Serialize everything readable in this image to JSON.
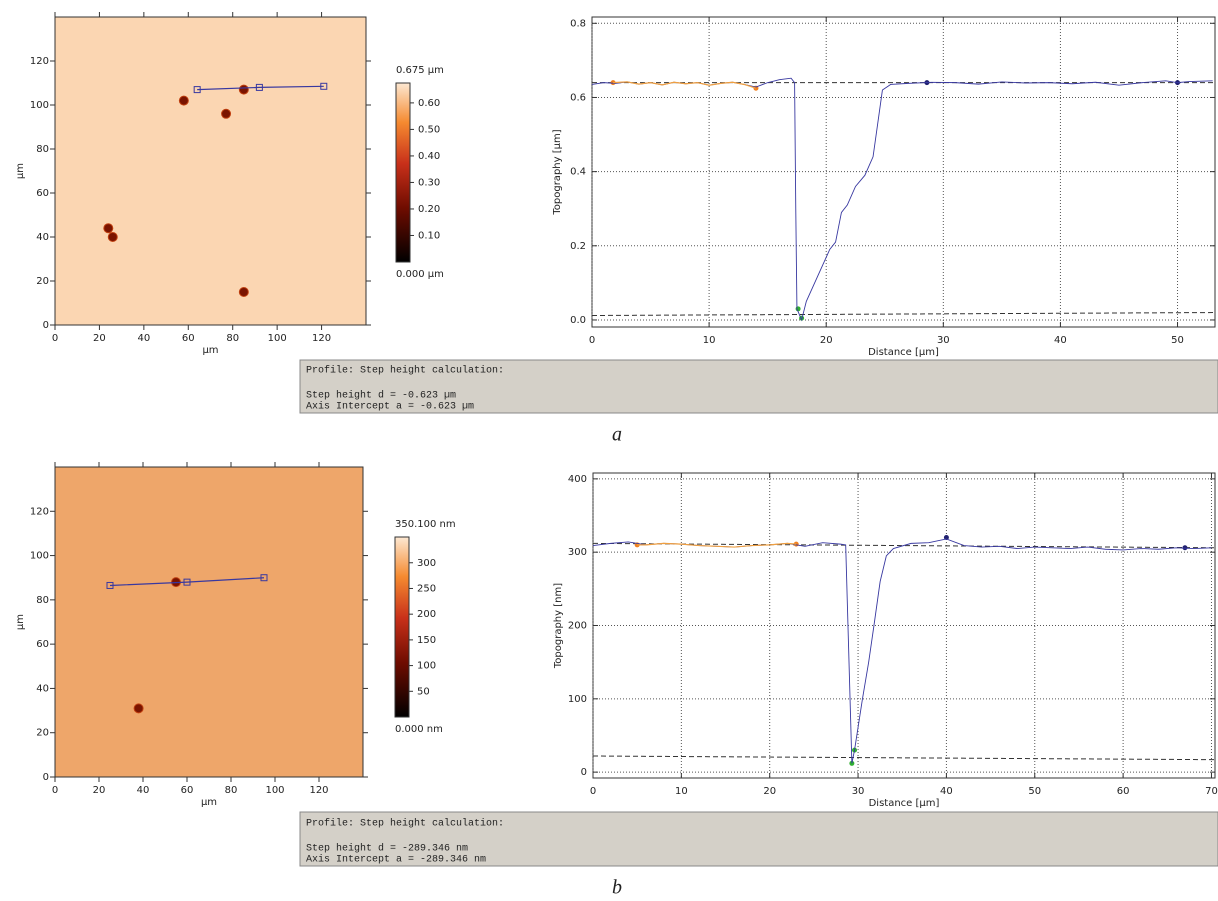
{
  "chart_data": [
    {
      "type": "heatmap",
      "color": "#fbd6b2",
      "xlabel": "µm",
      "ylabel": "µm",
      "xlim": [
        0,
        140
      ],
      "xticks": [
        0,
        20,
        40,
        60,
        80,
        100,
        120
      ],
      "ylim": [
        0,
        140
      ],
      "yticks": [
        0,
        20,
        40,
        60,
        80,
        100,
        120
      ],
      "features": {
        "x": [
          85,
          58,
          77,
          24,
          26,
          85
        ],
        "y": [
          107,
          102,
          96,
          44,
          40,
          15
        ]
      },
      "profile_line": {
        "color": "#3838a0",
        "x": [
          64,
          92,
          121
        ],
        "y": [
          107,
          108,
          108.5
        ]
      },
      "colorbar": {
        "lim": [
          0,
          0.675
        ],
        "ticks": [
          {
            "value": 0.675,
            "label": "0.675 µm"
          },
          {
            "value": 0.6,
            "label": "0.60"
          },
          {
            "value": 0.5,
            "label": "0.50"
          },
          {
            "value": 0.4,
            "label": "0.40"
          },
          {
            "value": 0.3,
            "label": "0.30"
          },
          {
            "value": 0.2,
            "label": "0.20"
          },
          {
            "value": 0.1,
            "label": "0.10"
          },
          {
            "value": 0,
            "label": "0.000 µm"
          }
        ]
      }
    },
    {
      "type": "line",
      "xlabel": "Distance [µm]",
      "ylabel": "Topography [µm]",
      "color": "#3838a0",
      "xlim": [
        0,
        53.2
      ],
      "xticks": [
        0,
        10,
        20,
        30,
        40,
        50
      ],
      "ylim": [
        -0.019,
        0.817
      ],
      "yticks": [
        {
          "value": 0,
          "label": "0.0"
        },
        0.2,
        0.4,
        0.6,
        0.8
      ],
      "grid": true,
      "x": [
        0,
        1,
        2,
        3,
        4,
        5,
        6,
        7,
        8,
        9,
        10,
        11,
        12,
        13,
        14,
        15,
        16,
        17,
        17.3,
        17.4,
        17.5,
        17.9,
        18.3,
        19.3,
        20.3,
        20.8,
        21.3,
        21.8,
        22.5,
        23.3,
        24,
        24.8,
        25.5,
        27,
        29,
        31,
        33,
        35,
        37,
        39,
        41,
        43,
        45,
        47,
        49,
        50,
        51,
        53
      ],
      "values": [
        0.635,
        0.64,
        0.638,
        0.642,
        0.636,
        0.64,
        0.634,
        0.641,
        0.637,
        0.64,
        0.633,
        0.638,
        0.641,
        0.635,
        0.628,
        0.64,
        0.648,
        0.652,
        0.64,
        0.3,
        0.03,
        0.0,
        0.05,
        0.12,
        0.19,
        0.21,
        0.29,
        0.31,
        0.36,
        0.39,
        0.44,
        0.62,
        0.635,
        0.638,
        0.641,
        0.64,
        0.636,
        0.642,
        0.639,
        0.64,
        0.637,
        0.641,
        0.633,
        0.64,
        0.645,
        0.64,
        0.643,
        0.645
      ],
      "overlays": [
        {
          "style": "dashed",
          "color": "#333333",
          "x": [
            0,
            53.2
          ],
          "values": [
            0.64,
            0.64
          ]
        },
        {
          "style": "dashed",
          "color": "#333333",
          "x": [
            0,
            53.2
          ],
          "values": [
            0.012,
            0.02
          ]
        },
        {
          "style": "line",
          "color": "#f0a040",
          "x": [
            1.8,
            3,
            4,
            5,
            6,
            7,
            8,
            9,
            10,
            11,
            12,
            13,
            14
          ],
          "values": [
            0.64,
            0.642,
            0.636,
            0.64,
            0.634,
            0.641,
            0.637,
            0.64,
            0.633,
            0.638,
            0.641,
            0.635,
            0.625
          ]
        },
        {
          "style": "points",
          "color": "#f08020",
          "x": [
            1.8,
            14
          ],
          "values": [
            0.64,
            0.625
          ]
        },
        {
          "style": "points",
          "color": "#30b030",
          "x": [
            17.6,
            17.9
          ],
          "values": [
            0.03,
            0.005
          ]
        },
        {
          "style": "points",
          "color": "#202070",
          "x": [
            28.6,
            50
          ],
          "values": [
            0.64,
            0.64
          ]
        }
      ]
    },
    {
      "type": "heatmap",
      "color": "#eea66a",
      "xlabel": "µm",
      "ylabel": "µm",
      "xlim": [
        0,
        140
      ],
      "xticks": [
        0,
        20,
        40,
        60,
        80,
        100,
        120
      ],
      "ylim": [
        0,
        140
      ],
      "yticks": [
        0,
        20,
        40,
        60,
        80,
        100,
        120
      ],
      "features": {
        "x": [
          55,
          38
        ],
        "y": [
          88,
          31
        ]
      },
      "profile_line": {
        "color": "#3838a0",
        "x": [
          25,
          60,
          95
        ],
        "y": [
          86.5,
          88,
          90
        ]
      },
      "colorbar": {
        "lim": [
          0,
          350.1
        ],
        "ticks": [
          {
            "value": 350.1,
            "label": "350.100 nm"
          },
          300,
          250,
          200,
          150,
          100,
          50,
          {
            "value": 0,
            "label": "0.000 nm"
          }
        ]
      }
    },
    {
      "type": "line",
      "xlabel": "Distance [µm]",
      "ylabel": "Topography [nm]",
      "color": "#3838a0",
      "xlim": [
        0,
        70.4
      ],
      "xticks": [
        0,
        10,
        20,
        30,
        40,
        50,
        60,
        70
      ],
      "ylim": [
        -8,
        408
      ],
      "yticks": [
        0,
        100,
        200,
        300,
        400
      ],
      "grid": true,
      "x": [
        0,
        2,
        4,
        6,
        8,
        10,
        12,
        14,
        16,
        18,
        20,
        22,
        24,
        26,
        28,
        28.6,
        29.3,
        29.6,
        30.5,
        31.2,
        31.8,
        32.5,
        33.2,
        34,
        36,
        38,
        40,
        42,
        44,
        46,
        48,
        50,
        52,
        54,
        56,
        58,
        60,
        62,
        64,
        66,
        68,
        70
      ],
      "values": [
        309,
        312,
        314,
        310,
        312,
        311,
        309,
        308,
        307,
        309,
        310,
        312,
        308,
        313,
        311,
        310,
        12,
        30,
        100,
        150,
        200,
        260,
        295,
        305,
        312,
        313,
        318,
        309,
        307,
        308,
        305,
        307,
        306,
        305,
        307,
        304,
        303,
        305,
        304,
        306,
        305,
        306
      ],
      "overlays": [
        {
          "style": "dashed",
          "color": "#333333",
          "x": [
            0,
            70.4
          ],
          "values": [
            312,
            306
          ]
        },
        {
          "style": "dashed",
          "color": "#333333",
          "x": [
            0,
            70.4
          ],
          "values": [
            22,
            17
          ]
        },
        {
          "style": "line",
          "color": "#f0a040",
          "x": [
            5,
            6,
            8,
            10,
            12,
            14,
            16,
            18,
            20,
            22,
            23
          ],
          "values": [
            310,
            310,
            312,
            311,
            309,
            308,
            307,
            309,
            310,
            312,
            311
          ]
        },
        {
          "style": "points",
          "color": "#f08020",
          "x": [
            5,
            23
          ],
          "values": [
            310,
            311
          ]
        },
        {
          "style": "points",
          "color": "#30b030",
          "x": [
            29.3,
            29.6
          ],
          "values": [
            12,
            30
          ]
        },
        {
          "style": "points",
          "color": "#202070",
          "x": [
            40,
            67
          ],
          "values": [
            320,
            306
          ]
        }
      ]
    }
  ],
  "info_boxes": [
    {
      "lines": [
        "Profile: Step height calculation:",
        "Step height d = -0.623 µm",
        "Axis Intercept a = -0.623 µm"
      ]
    },
    {
      "lines": [
        "Profile: Step height calculation:",
        "Step height d = -289.346 nm",
        "Axis Intercept a = -289.346 nm"
      ]
    }
  ],
  "panel_labels": [
    "a",
    "b"
  ]
}
